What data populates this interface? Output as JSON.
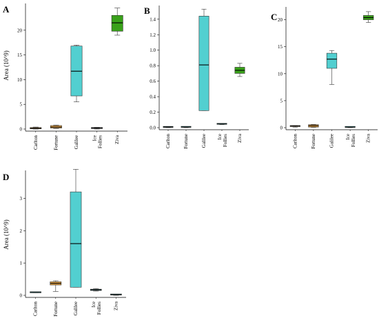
{
  "chart_data": [
    {
      "type": "box",
      "panel_label": "A",
      "ylabel": "Area (10^9)",
      "categories": [
        "Carlton",
        "Fortune",
        "Galilee",
        "Ice Follies",
        "Ziva"
      ],
      "yticks": [
        "0",
        "5",
        "10",
        "15",
        "20"
      ],
      "ylim": [
        0,
        25
      ],
      "boxes": [
        {
          "category": "Carlton",
          "min": 0.0,
          "q1": 0.05,
          "median": 0.15,
          "q3": 0.3,
          "max": 0.4,
          "color": "#e0a045"
        },
        {
          "category": "Fortune",
          "min": 0.1,
          "q1": 0.2,
          "median": 0.4,
          "q3": 0.7,
          "max": 0.8,
          "color": "#e0a045"
        },
        {
          "category": "Galilee",
          "min": 5.5,
          "q1": 6.7,
          "median": 11.7,
          "q3": 16.8,
          "max": 17.0,
          "color": "#52cfd0"
        },
        {
          "category": "Ice Follies",
          "min": 0.0,
          "q1": 0.1,
          "median": 0.2,
          "q3": 0.3,
          "max": 0.35,
          "color": "#52cfd0"
        },
        {
          "category": "Ziva",
          "min": 19.0,
          "q1": 19.8,
          "median": 21.5,
          "q3": 23.0,
          "max": 24.5,
          "color": "#39a11a"
        }
      ]
    },
    {
      "type": "box",
      "panel_label": "B",
      "ylabel": "",
      "categories": [
        "Carlton",
        "Fortune",
        "Galilee",
        "Ice Follies",
        "Ziva"
      ],
      "yticks": [
        "0.0",
        "0.2",
        "0.4",
        "0.6",
        "0.8",
        "1.0",
        "1.2",
        "1.4"
      ],
      "ylim": [
        0,
        1.55
      ],
      "boxes": [
        {
          "category": "Carlton",
          "min": 0.0,
          "q1": 0.003,
          "median": 0.008,
          "q3": 0.012,
          "max": 0.016,
          "color": "#52cfd0"
        },
        {
          "category": "Fortune",
          "min": 0.0,
          "q1": 0.004,
          "median": 0.008,
          "q3": 0.012,
          "max": 0.015,
          "color": "#52cfd0"
        },
        {
          "category": "Galilee",
          "min": 0.22,
          "q1": 0.22,
          "median": 0.81,
          "q3": 1.44,
          "max": 1.53,
          "color": "#52cfd0"
        },
        {
          "category": "Ice Follies",
          "min": 0.04,
          "q1": 0.043,
          "median": 0.047,
          "q3": 0.05,
          "max": 0.053,
          "color": "#52cfd0"
        },
        {
          "category": "Ziva",
          "min": 0.66,
          "q1": 0.7,
          "median": 0.74,
          "q3": 0.78,
          "max": 0.83,
          "color": "#39a11a"
        }
      ]
    },
    {
      "type": "box",
      "panel_label": "C",
      "ylabel": "",
      "categories": [
        "Carlton",
        "Fortune",
        "Galilee",
        "Ice Follies",
        "Ziva"
      ],
      "yticks": [
        "0",
        "5",
        "10",
        "15",
        "20"
      ],
      "ylim": [
        0,
        22
      ],
      "boxes": [
        {
          "category": "Carlton",
          "min": 0.1,
          "q1": 0.2,
          "median": 0.3,
          "q3": 0.35,
          "max": 0.4,
          "color": "#e0a045"
        },
        {
          "category": "Fortune",
          "min": 0.05,
          "q1": 0.1,
          "median": 0.35,
          "q3": 0.55,
          "max": 0.6,
          "color": "#e0a045"
        },
        {
          "category": "Galilee",
          "min": 8.0,
          "q1": 11.0,
          "median": 12.7,
          "q3": 13.8,
          "max": 14.3,
          "color": "#52cfd0"
        },
        {
          "category": "Ice Follies",
          "min": 0.0,
          "q1": 0.05,
          "median": 0.1,
          "q3": 0.15,
          "max": 0.2,
          "color": "#52cfd0"
        },
        {
          "category": "Ziva",
          "min": 19.5,
          "q1": 20.0,
          "median": 20.4,
          "q3": 20.8,
          "max": 21.5,
          "color": "#39a11a"
        }
      ]
    },
    {
      "type": "box",
      "panel_label": "D",
      "ylabel": "Area (10^9)",
      "categories": [
        "Carlton",
        "Fortune",
        "Galilee",
        "Ice Follies",
        "Ziva"
      ],
      "yticks": [
        "0",
        "1",
        "2",
        "3"
      ],
      "ylim": [
        0,
        3.8
      ],
      "boxes": [
        {
          "category": "Carlton",
          "min": 0.08,
          "q1": 0.08,
          "median": 0.09,
          "q3": 0.1,
          "max": 0.1,
          "color": "#52cfd0"
        },
        {
          "category": "Fortune",
          "min": 0.12,
          "q1": 0.32,
          "median": 0.37,
          "q3": 0.42,
          "max": 0.45,
          "color": "#e0a045"
        },
        {
          "category": "Galilee",
          "min": 0.25,
          "q1": 0.25,
          "median": 1.6,
          "q3": 3.2,
          "max": 3.9,
          "color": "#52cfd0"
        },
        {
          "category": "Ice Follies",
          "min": 0.13,
          "q1": 0.15,
          "median": 0.17,
          "q3": 0.19,
          "max": 0.21,
          "color": "#52cfd0"
        },
        {
          "category": "Ziva",
          "min": 0.0,
          "q1": 0.01,
          "median": 0.02,
          "q3": 0.03,
          "max": 0.03,
          "color": "#52cfd0"
        }
      ]
    }
  ]
}
